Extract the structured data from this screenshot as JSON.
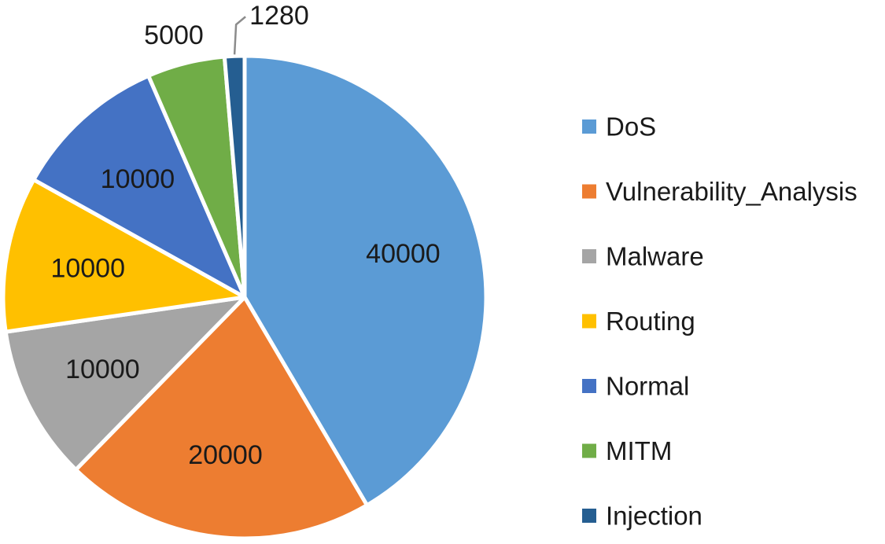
{
  "chart_data": {
    "type": "pie",
    "title": "",
    "legend_position": "right",
    "start_angle_deg": 0,
    "direction": "clockwise",
    "slices": [
      {
        "name": "DoS",
        "value": 40000,
        "color": "#5B9BD5",
        "label": "40000"
      },
      {
        "name": "Vulnerability_Analysis",
        "value": 20000,
        "color": "#ED7D31",
        "label": "20000"
      },
      {
        "name": "Malware",
        "value": 10000,
        "color": "#A5A5A5",
        "label": "10000"
      },
      {
        "name": "Routing",
        "value": 10000,
        "color": "#FFC000",
        "label": "10000"
      },
      {
        "name": "Normal",
        "value": 10000,
        "color": "#4472C4",
        "label": "10000"
      },
      {
        "name": "MITM",
        "value": 5000,
        "color": "#70AD47",
        "label": "5000"
      },
      {
        "name": "Injection",
        "value": 1280,
        "color": "#255E91",
        "label": "1280"
      }
    ],
    "legend_entries": [
      "DoS",
      "Vulnerability_Analysis",
      "Malware",
      "Routing",
      "Normal",
      "MITM",
      "Injection"
    ]
  }
}
